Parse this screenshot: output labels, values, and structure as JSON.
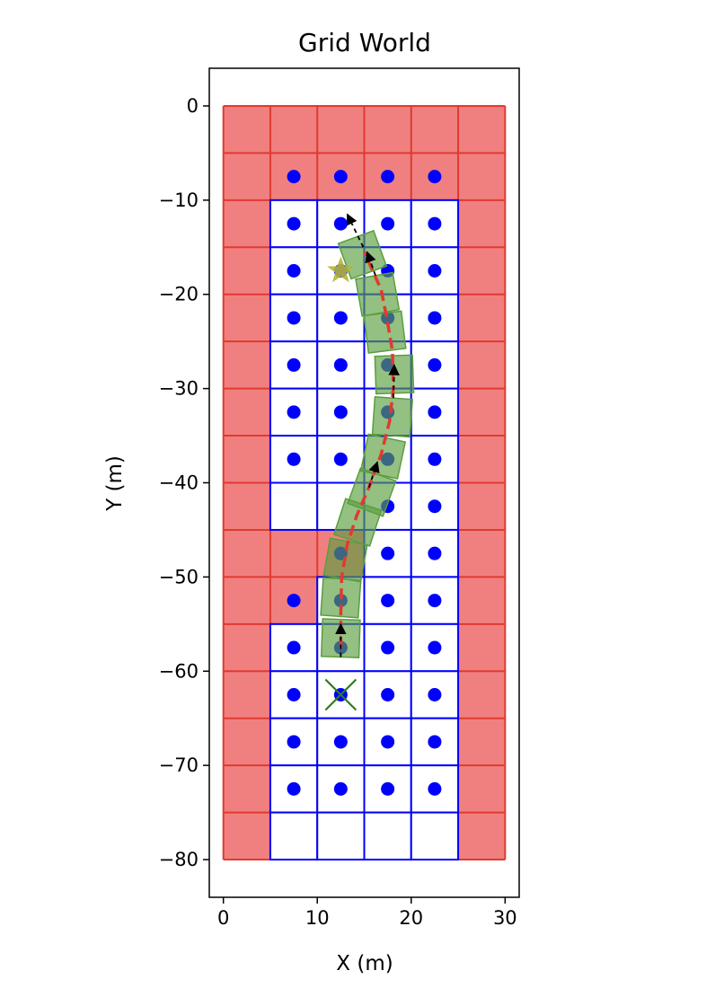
{
  "chart_data": {
    "type": "scatter",
    "title": "Grid World",
    "xlabel": "X (m)",
    "ylabel": "Y (m)",
    "xlim": [
      -1.5,
      31.5
    ],
    "ylim": [
      -84,
      4
    ],
    "xticks": [
      0,
      10,
      20,
      30
    ],
    "yticks": [
      0,
      -10,
      -20,
      -30,
      -40,
      -50,
      -60,
      -70,
      -80
    ],
    "xtick_labels": [
      "0",
      "10",
      "20",
      "30"
    ],
    "ytick_labels": [
      "0",
      "−10",
      "−20",
      "−30",
      "−40",
      "−50",
      "−60",
      "−70",
      "−80"
    ],
    "grid": {
      "x0": 0,
      "x1": 30,
      "y0": -80,
      "y1": 0,
      "cell": 5
    },
    "colors": {
      "obstacle": "#f08080",
      "obstacle_line": "#e03a30",
      "free_line": "#0000ff",
      "cell_center": "#0000ff",
      "vehicle": "#5a9e3f",
      "path": "#e03a30",
      "arrow": "#000000",
      "goal": "#b5b53a",
      "start": "#2e7d1e"
    },
    "free_cells": [
      [
        5,
        -10
      ],
      [
        10,
        -10
      ],
      [
        15,
        -10
      ],
      [
        20,
        -10
      ],
      [
        5,
        -15
      ],
      [
        10,
        -15
      ],
      [
        15,
        -15
      ],
      [
        20,
        -15
      ],
      [
        5,
        -20
      ],
      [
        10,
        -20
      ],
      [
        15,
        -20
      ],
      [
        20,
        -20
      ],
      [
        5,
        -25
      ],
      [
        10,
        -25
      ],
      [
        15,
        -25
      ],
      [
        20,
        -25
      ],
      [
        5,
        -30
      ],
      [
        10,
        -30
      ],
      [
        15,
        -30
      ],
      [
        20,
        -30
      ],
      [
        5,
        -35
      ],
      [
        10,
        -35
      ],
      [
        15,
        -35
      ],
      [
        20,
        -35
      ],
      [
        5,
        -40
      ],
      [
        10,
        -40
      ],
      [
        15,
        -40
      ],
      [
        20,
        -40
      ],
      [
        15,
        -45
      ],
      [
        20,
        -45
      ],
      [
        10,
        -50
      ],
      [
        15,
        -50
      ],
      [
        20,
        -50
      ],
      [
        5,
        -55
      ],
      [
        10,
        -55
      ],
      [
        15,
        -55
      ],
      [
        20,
        -55
      ],
      [
        5,
        -60
      ],
      [
        10,
        -60
      ],
      [
        15,
        -60
      ],
      [
        20,
        -60
      ],
      [
        5,
        -65
      ],
      [
        10,
        -65
      ],
      [
        15,
        -65
      ],
      [
        20,
        -65
      ],
      [
        5,
        -70
      ],
      [
        10,
        -70
      ],
      [
        15,
        -70
      ],
      [
        20,
        -70
      ],
      [
        5,
        -75
      ],
      [
        10,
        -75
      ],
      [
        15,
        -75
      ],
      [
        20,
        -75
      ]
    ],
    "cell_centers": [
      [
        7.5,
        -7.5
      ],
      [
        12.5,
        -7.5
      ],
      [
        17.5,
        -7.5
      ],
      [
        22.5,
        -7.5
      ],
      [
        7.5,
        -12.5
      ],
      [
        12.5,
        -12.5
      ],
      [
        17.5,
        -12.5
      ],
      [
        22.5,
        -12.5
      ],
      [
        7.5,
        -17.5
      ],
      [
        12.5,
        -17.5
      ],
      [
        17.5,
        -17.5
      ],
      [
        22.5,
        -17.5
      ],
      [
        7.5,
        -22.5
      ],
      [
        12.5,
        -22.5
      ],
      [
        17.5,
        -22.5
      ],
      [
        22.5,
        -22.5
      ],
      [
        7.5,
        -27.5
      ],
      [
        12.5,
        -27.5
      ],
      [
        17.5,
        -27.5
      ],
      [
        22.5,
        -27.5
      ],
      [
        7.5,
        -32.5
      ],
      [
        12.5,
        -32.5
      ],
      [
        17.5,
        -32.5
      ],
      [
        22.5,
        -32.5
      ],
      [
        7.5,
        -37.5
      ],
      [
        12.5,
        -37.5
      ],
      [
        17.5,
        -37.5
      ],
      [
        22.5,
        -37.5
      ],
      [
        17.5,
        -42.5
      ],
      [
        22.5,
        -42.5
      ],
      [
        12.5,
        -47.5
      ],
      [
        17.5,
        -47.5
      ],
      [
        22.5,
        -47.5
      ],
      [
        7.5,
        -52.5
      ],
      [
        12.5,
        -52.5
      ],
      [
        17.5,
        -52.5
      ],
      [
        22.5,
        -52.5
      ],
      [
        7.5,
        -57.5
      ],
      [
        12.5,
        -57.5
      ],
      [
        17.5,
        -57.5
      ],
      [
        22.5,
        -57.5
      ],
      [
        7.5,
        -62.5
      ],
      [
        12.5,
        -62.5
      ],
      [
        17.5,
        -62.5
      ],
      [
        22.5,
        -62.5
      ],
      [
        7.5,
        -67.5
      ],
      [
        12.5,
        -67.5
      ],
      [
        17.5,
        -67.5
      ],
      [
        22.5,
        -67.5
      ],
      [
        7.5,
        -72.5
      ],
      [
        12.5,
        -72.5
      ],
      [
        17.5,
        -72.5
      ],
      [
        22.5,
        -72.5
      ]
    ],
    "vehicle_poses": [
      {
        "x": 12.5,
        "y": -56.5,
        "heading": 88
      },
      {
        "x": 12.5,
        "y": -52.2,
        "heading": 86
      },
      {
        "x": 13.0,
        "y": -48.2,
        "heading": 80
      },
      {
        "x": 14.3,
        "y": -44.2,
        "heading": 72
      },
      {
        "x": 15.8,
        "y": -41.0,
        "heading": 70
      },
      {
        "x": 17.0,
        "y": -37.2,
        "heading": 78
      },
      {
        "x": 18.0,
        "y": -33.0,
        "heading": 86
      },
      {
        "x": 18.2,
        "y": -28.5,
        "heading": 92
      },
      {
        "x": 17.2,
        "y": -24.0,
        "heading": 97
      },
      {
        "x": 16.4,
        "y": -20.0,
        "heading": 100
      },
      {
        "x": 14.8,
        "y": -15.8,
        "heading": 110
      }
    ],
    "path": [
      [
        12.5,
        -57.5
      ],
      [
        12.5,
        -54
      ],
      [
        12.6,
        -50
      ],
      [
        13.2,
        -46.5
      ],
      [
        14.2,
        -43.5
      ],
      [
        15.5,
        -40.5
      ],
      [
        16.8,
        -37
      ],
      [
        17.7,
        -33.5
      ],
      [
        18.1,
        -30
      ],
      [
        18.0,
        -26
      ],
      [
        17.4,
        -22.5
      ],
      [
        16.8,
        -19.5
      ],
      [
        15.0,
        -15.5
      ]
    ],
    "arrows": [
      {
        "from": [
          12.5,
          -58.5
        ],
        "to": [
          12.5,
          -55.0
        ]
      },
      {
        "from": [
          15.5,
          -40.5
        ],
        "to": [
          16.4,
          -37.8
        ]
      },
      {
        "from": [
          18.1,
          -31.0
        ],
        "to": [
          18.2,
          -27.5
        ]
      },
      {
        "from": [
          16.2,
          -18.0
        ],
        "to": [
          15.3,
          -15.5
        ]
      },
      {
        "from": [
          14.9,
          -15.0
        ],
        "to": [
          13.2,
          -11.5
        ]
      }
    ],
    "goal": [
      12.5,
      -17.5
    ],
    "start": [
      12.5,
      -62.5
    ]
  }
}
